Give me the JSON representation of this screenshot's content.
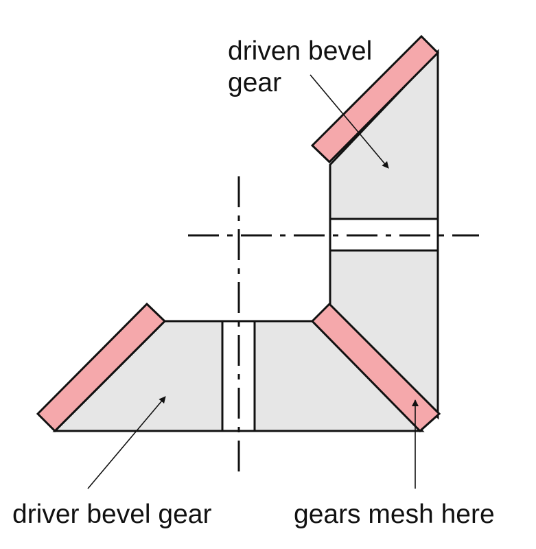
{
  "labels": {
    "driven_line1": "driven bevel",
    "driven_line2": "gear",
    "driver": "driver bevel gear",
    "mesh": "gears mesh here"
  },
  "colors": {
    "gear_body": "#e6e6e6",
    "gear_teeth": "#f5a8ab",
    "stroke": "#111111",
    "background": "#ffffff"
  }
}
